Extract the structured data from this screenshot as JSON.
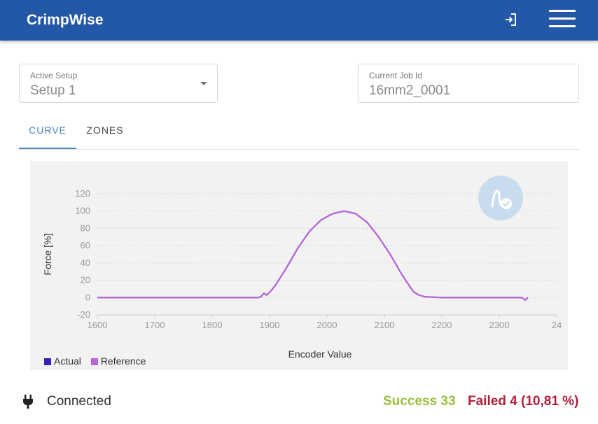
{
  "app": {
    "title": "CrimpWise",
    "icons": {
      "login": "login-icon",
      "menu": "menu-icon"
    }
  },
  "setup": {
    "label": "Active Setup",
    "value": "Setup 1"
  },
  "job": {
    "label": "Current Job Id",
    "value": "16mm2_0001"
  },
  "tabs": [
    {
      "label": "CURVE",
      "active": true
    },
    {
      "label": "ZONES",
      "active": false
    }
  ],
  "chart_data": {
    "type": "line",
    "xlabel": "Encoder Value",
    "ylabel": "Force [%]",
    "xlim": [
      1600,
      2400
    ],
    "ylim": [
      -20,
      120
    ],
    "x_ticks": [
      "1600",
      "1700",
      "1800",
      "1900",
      "2000",
      "2100",
      "2200",
      "2300",
      "24"
    ],
    "y_ticks": [
      "120",
      "100",
      "80",
      "60",
      "40",
      "20",
      "0",
      "-20"
    ],
    "grid": true,
    "legend_position": "bottom-left",
    "series": [
      {
        "name": "Actual",
        "color": "#3a1fb5",
        "x": [
          1600,
          1880,
          1885,
          1890,
          1895,
          1900,
          1910,
          1930,
          1950,
          1970,
          1990,
          2010,
          2030,
          2050,
          2070,
          2090,
          2110,
          2130,
          2150,
          2160,
          2170,
          2200,
          2250,
          2300,
          2330,
          2340,
          2345,
          2350
        ],
        "y": [
          0,
          0,
          1,
          5,
          3,
          6,
          14,
          35,
          58,
          77,
          90,
          97,
          100,
          97,
          87,
          70,
          50,
          27,
          7,
          3,
          1,
          0,
          0,
          0,
          0,
          0,
          -3,
          0
        ]
      },
      {
        "name": "Reference",
        "color": "#b766d6",
        "x": [
          1600,
          1880,
          1885,
          1890,
          1895,
          1900,
          1910,
          1930,
          1950,
          1970,
          1990,
          2010,
          2030,
          2050,
          2070,
          2090,
          2110,
          2130,
          2150,
          2160,
          2170,
          2200,
          2250,
          2300,
          2330,
          2340,
          2345,
          2350
        ],
        "y": [
          0,
          0,
          1,
          5,
          3,
          6,
          14,
          35,
          58,
          77,
          90,
          97,
          100,
          97,
          87,
          70,
          50,
          27,
          7,
          3,
          1,
          0,
          0,
          0,
          0,
          0,
          -3,
          0
        ]
      }
    ]
  },
  "status": {
    "connection": "Connected",
    "success": "Success 33",
    "failed": "Failed 4 (10,81 %)",
    "colors": {
      "success": "#9abf3b",
      "failed": "#b01f3a"
    }
  }
}
